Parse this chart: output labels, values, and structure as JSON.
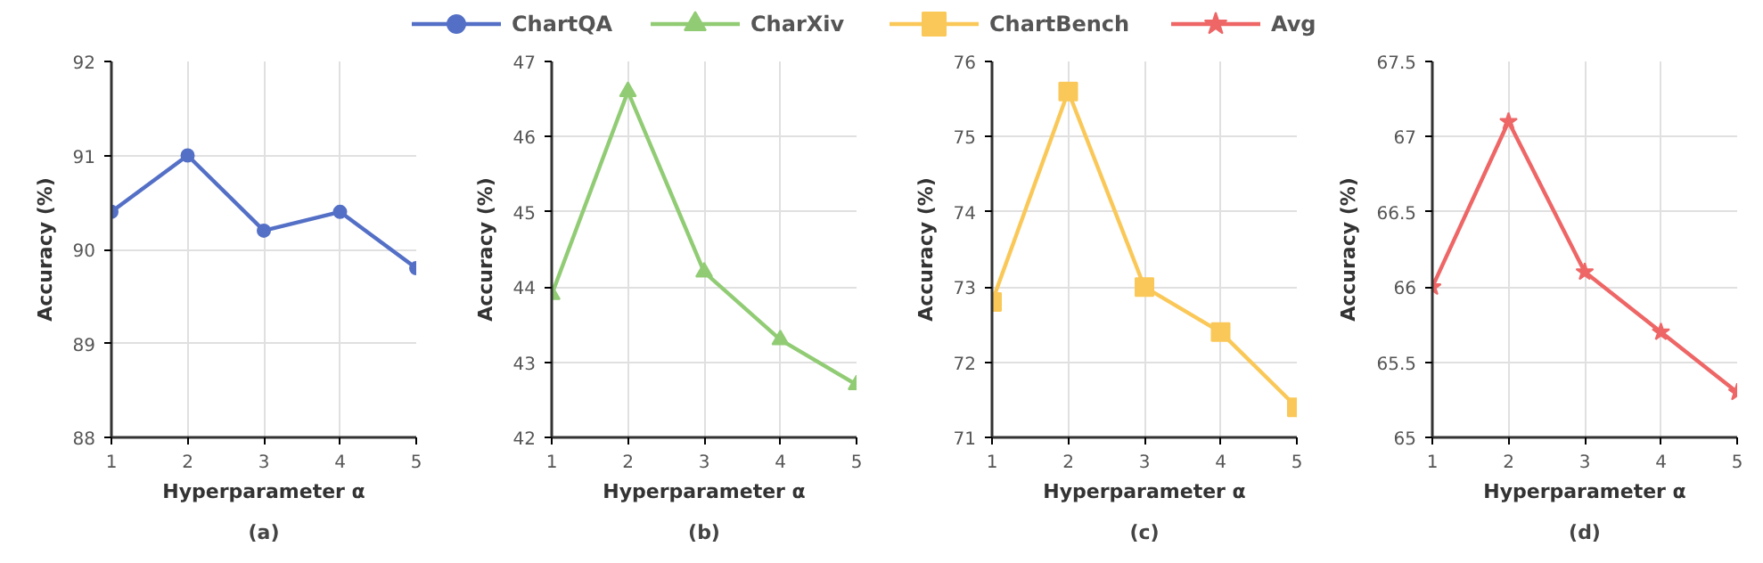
{
  "chart_data": [
    {
      "type": "line",
      "title": "(a)",
      "xlabel": "Hyperparameter α",
      "ylabel": "Accuracy (%)",
      "x": [
        1,
        2,
        3,
        4,
        5
      ],
      "xlim": [
        1,
        5
      ],
      "xticks": [
        1,
        2,
        3,
        4,
        5
      ],
      "ylim": [
        88,
        92
      ],
      "yticks": [
        88,
        89,
        90,
        91,
        92
      ],
      "grid": true,
      "legend": "top",
      "marker": "circle",
      "line_style": "solid",
      "series": [
        {
          "name": "ChartQA",
          "color": "#5470c6",
          "values": [
            90.4,
            91.0,
            90.2,
            90.4,
            89.8
          ]
        }
      ]
    },
    {
      "type": "line",
      "title": "(b)",
      "xlabel": "Hyperparameter α",
      "ylabel": "Accuracy (%)",
      "x": [
        1,
        2,
        3,
        4,
        5
      ],
      "xlim": [
        1,
        5
      ],
      "xticks": [
        1,
        2,
        3,
        4,
        5
      ],
      "ylim": [
        42,
        47
      ],
      "yticks": [
        42,
        43,
        44,
        45,
        46,
        47
      ],
      "grid": true,
      "legend": "top",
      "marker": "triangle",
      "line_style": "solid",
      "series": [
        {
          "name": "CharXiv",
          "color": "#91cc75",
          "values": [
            43.9,
            46.6,
            44.2,
            43.3,
            42.7
          ]
        }
      ]
    },
    {
      "type": "line",
      "title": "(c)",
      "xlabel": "Hyperparameter α",
      "ylabel": "Accuracy (%)",
      "x": [
        1,
        2,
        3,
        4,
        5
      ],
      "xlim": [
        1,
        5
      ],
      "xticks": [
        1,
        2,
        3,
        4,
        5
      ],
      "ylim": [
        71,
        76
      ],
      "yticks": [
        71,
        72,
        73,
        74,
        75,
        76
      ],
      "grid": true,
      "legend": "top",
      "marker": "square",
      "line_style": "solid",
      "series": [
        {
          "name": "ChartBench",
          "color": "#fac858",
          "values": [
            72.8,
            75.6,
            73.0,
            72.4,
            71.4
          ]
        }
      ]
    },
    {
      "type": "line",
      "title": "(d)",
      "xlabel": "Hyperparameter α",
      "ylabel": "Accuracy (%)",
      "x": [
        1,
        2,
        3,
        4,
        5
      ],
      "xlim": [
        1,
        5
      ],
      "xticks": [
        1,
        2,
        3,
        4,
        5
      ],
      "ylim": [
        65,
        67.5
      ],
      "yticks": [
        65,
        65.5,
        66,
        66.5,
        67,
        67.5
      ],
      "grid": true,
      "legend": "top",
      "marker": "star",
      "line_style": "solid",
      "series": [
        {
          "name": "Avg",
          "color": "#ee6666",
          "values": [
            66.0,
            67.1,
            66.1,
            65.7,
            65.3
          ]
        }
      ]
    }
  ]
}
